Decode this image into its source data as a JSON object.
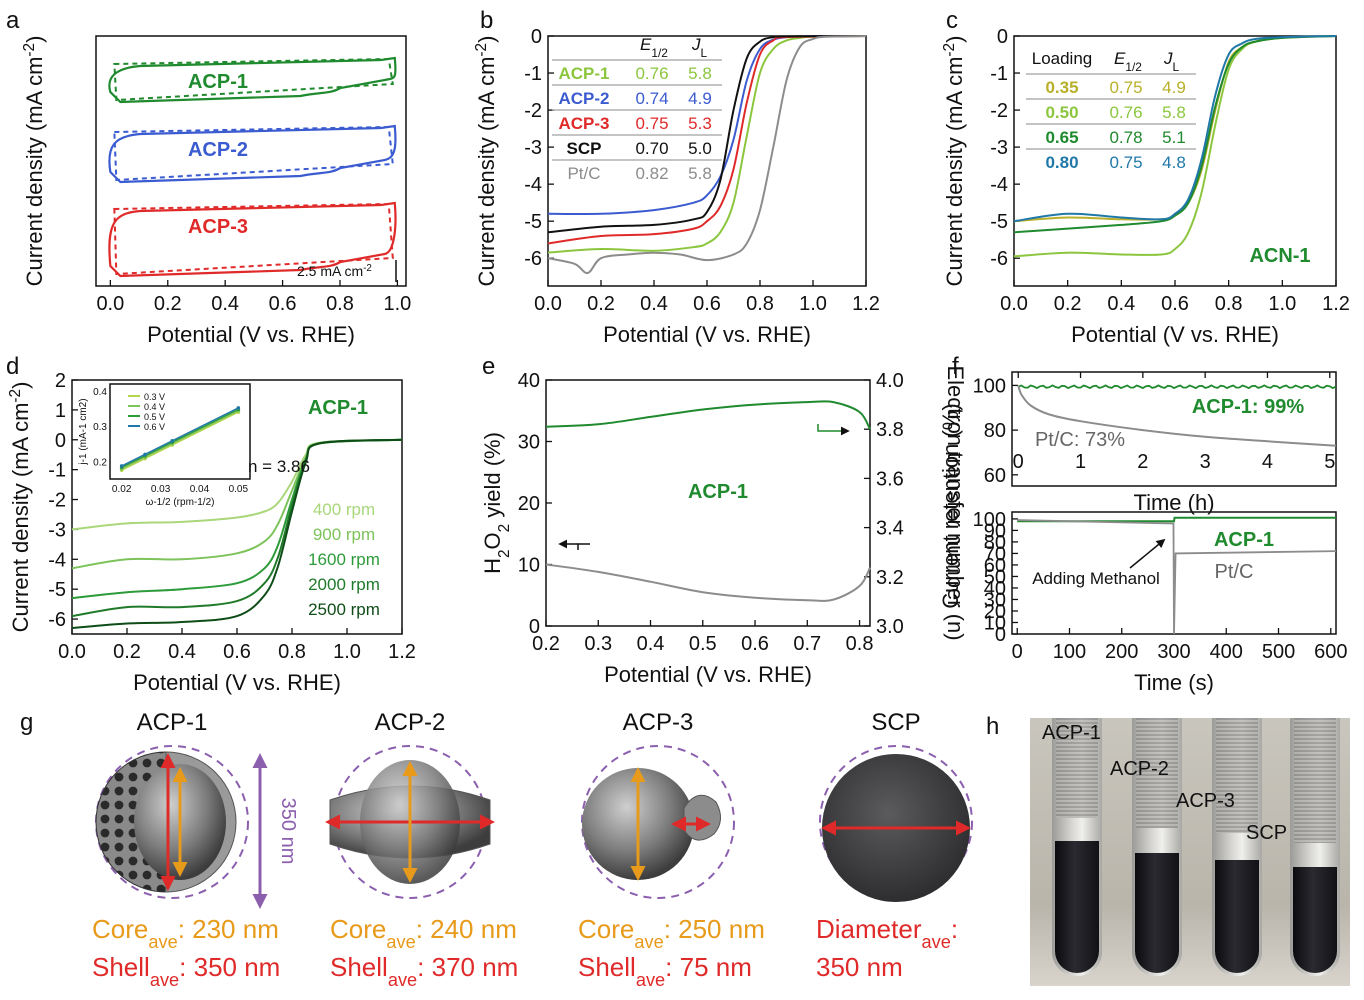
{
  "panel_letters": {
    "a": "a",
    "b": "b",
    "c": "c",
    "d": "d",
    "e": "e",
    "f": "f",
    "g": "g",
    "h": "h"
  },
  "colors": {
    "green": "#1f8a2e",
    "blue": "#3b5bd0",
    "red": "#e02a2a",
    "lightgreen": "#8cc63e",
    "gray": "#8c8c8c",
    "olive": "#b8b02a",
    "teal": "#1f78a8",
    "orange": "#e89a1a",
    "purple": "#8b5fae"
  },
  "axis": {
    "xlabel": "Potential (V vs. RHE)",
    "ylabel": "Current density (mA cm-2)"
  },
  "chart_data": [
    {
      "id": "a",
      "type": "line",
      "xlabel": "Potential (V vs. RHE)",
      "ylabel": "Current density (mA cm-2)",
      "xlim": [
        -0.05,
        1.03
      ],
      "xticks": [
        "0.0",
        "0.2",
        "0.4",
        "0.6",
        "0.8",
        "1.0"
      ],
      "series": [
        {
          "name": "ACP-1"
        },
        {
          "name": "ACP-2"
        },
        {
          "name": "ACP-3"
        }
      ],
      "scalebar": "2.5 mA cm-2"
    },
    {
      "id": "b",
      "type": "line",
      "xlim": [
        0,
        1.2
      ],
      "ylim": [
        -6.7,
        0
      ],
      "xticks": [
        "0.0",
        "0.2",
        "0.4",
        "0.6",
        "0.8",
        "1.0",
        "1.2"
      ],
      "yticks": [
        "0",
        "-1",
        "-2",
        "-3",
        "-4",
        "-5",
        "-6"
      ],
      "table": {
        "headers": [
          "",
          "E1/2",
          "JL"
        ],
        "rows": [
          [
            "ACP-1",
            "0.76",
            "5.8"
          ],
          [
            "ACP-2",
            "0.74",
            "4.9"
          ],
          [
            "ACP-3",
            "0.75",
            "5.3"
          ],
          [
            "SCP",
            "0.70",
            "5.0"
          ],
          [
            "Pt/C",
            "0.82",
            "5.8"
          ]
        ]
      },
      "series": [
        {
          "name": "ACP-1",
          "x": [
            0,
            0.2,
            0.4,
            0.55,
            0.6,
            0.65,
            0.7,
            0.75,
            0.8,
            0.85,
            0.9,
            0.95,
            1.0,
            1.2
          ],
          "y": [
            -5.85,
            -5.75,
            -5.8,
            -5.7,
            -5.6,
            -5.3,
            -4.5,
            -2.7,
            -1.0,
            -0.35,
            -0.12,
            -0.05,
            -0.02,
            0
          ]
        },
        {
          "name": "ACP-2",
          "x": [
            0,
            0.2,
            0.4,
            0.55,
            0.6,
            0.65,
            0.7,
            0.75,
            0.8,
            0.85,
            0.9,
            0.95,
            1.2
          ],
          "y": [
            -4.8,
            -4.8,
            -4.7,
            -4.5,
            -4.3,
            -3.8,
            -2.8,
            -1.2,
            -0.35,
            -0.1,
            -0.03,
            -0.01,
            0
          ]
        },
        {
          "name": "ACP-3",
          "x": [
            0,
            0.2,
            0.4,
            0.55,
            0.6,
            0.65,
            0.7,
            0.75,
            0.8,
            0.85,
            0.9,
            1.2
          ],
          "y": [
            -5.6,
            -5.4,
            -5.35,
            -5.2,
            -5.0,
            -4.6,
            -3.6,
            -1.8,
            -0.5,
            -0.12,
            -0.03,
            0
          ]
        },
        {
          "name": "SCP",
          "x": [
            0,
            0.2,
            0.4,
            0.55,
            0.6,
            0.65,
            0.7,
            0.75,
            0.8,
            0.85,
            0.9,
            1.2
          ],
          "y": [
            -5.3,
            -5.15,
            -5.1,
            -4.95,
            -4.75,
            -3.9,
            -2.0,
            -0.6,
            -0.15,
            -0.03,
            -0.01,
            0
          ]
        },
        {
          "name": "Pt/C",
          "x": [
            0,
            0.1,
            0.15,
            0.2,
            0.3,
            0.4,
            0.5,
            0.6,
            0.7,
            0.75,
            0.8,
            0.85,
            0.9,
            0.95,
            1.0,
            1.05,
            1.2
          ],
          "y": [
            -6.0,
            -6.15,
            -6.4,
            -6.0,
            -5.9,
            -5.85,
            -5.9,
            -6.05,
            -5.9,
            -5.6,
            -4.7,
            -3.0,
            -1.2,
            -0.3,
            -0.08,
            -0.02,
            0
          ]
        }
      ]
    },
    {
      "id": "c",
      "type": "line",
      "xlim": [
        0,
        1.2
      ],
      "ylim": [
        -6.7,
        0
      ],
      "label": "ACN-1",
      "xticks": [
        "0.0",
        "0.2",
        "0.4",
        "0.6",
        "0.8",
        "1.0",
        "1.2"
      ],
      "yticks": [
        "0",
        "-1",
        "-2",
        "-3",
        "-4",
        "-5",
        "-6"
      ],
      "table": {
        "headers": [
          "Loading",
          "E1/2",
          "JL"
        ],
        "rows": [
          [
            "0.35",
            "0.75",
            "4.9"
          ],
          [
            "0.50",
            "0.76",
            "5.8"
          ],
          [
            "0.65",
            "0.78",
            "5.1"
          ],
          [
            "0.80",
            "0.75",
            "4.8"
          ]
        ]
      },
      "series": [
        {
          "name": "0.35",
          "x": [
            0,
            0.2,
            0.4,
            0.55,
            0.6,
            0.65,
            0.7,
            0.75,
            0.8,
            0.85,
            0.9,
            1.0,
            1.2
          ],
          "y": [
            -5.0,
            -4.9,
            -4.95,
            -4.95,
            -4.85,
            -4.5,
            -3.6,
            -2.0,
            -0.7,
            -0.3,
            -0.15,
            -0.05,
            0
          ]
        },
        {
          "name": "0.50",
          "x": [
            0,
            0.2,
            0.4,
            0.55,
            0.6,
            0.65,
            0.7,
            0.75,
            0.8,
            0.85,
            0.9,
            1.0,
            1.2
          ],
          "y": [
            -5.95,
            -5.85,
            -5.9,
            -5.9,
            -5.75,
            -5.3,
            -4.2,
            -2.4,
            -0.9,
            -0.35,
            -0.15,
            -0.05,
            0
          ]
        },
        {
          "name": "0.65",
          "x": [
            0,
            0.2,
            0.4,
            0.55,
            0.6,
            0.65,
            0.7,
            0.75,
            0.8,
            0.85,
            0.9,
            1.0,
            1.2
          ],
          "y": [
            -5.3,
            -5.2,
            -5.1,
            -5.0,
            -4.85,
            -4.5,
            -3.5,
            -1.9,
            -0.75,
            -0.3,
            -0.15,
            -0.05,
            0
          ]
        },
        {
          "name": "0.80",
          "x": [
            0,
            0.2,
            0.4,
            0.55,
            0.6,
            0.65,
            0.7,
            0.75,
            0.8,
            0.85,
            0.9,
            1.0,
            1.2
          ],
          "y": [
            -5.0,
            -4.8,
            -4.9,
            -4.95,
            -4.8,
            -4.4,
            -3.3,
            -1.6,
            -0.5,
            -0.2,
            -0.08,
            -0.03,
            0
          ]
        }
      ]
    },
    {
      "id": "d",
      "type": "line",
      "xlim": [
        0,
        1.2
      ],
      "ylim": [
        -6.5,
        2
      ],
      "label": "ACP-1",
      "xticks": [
        "0.0",
        "0.2",
        "0.4",
        "0.6",
        "0.8",
        "1.0",
        "1.2"
      ],
      "yticks": [
        "2",
        "1",
        "0",
        "-1",
        "-2",
        "-3",
        "-4",
        "-5",
        "-6"
      ],
      "series": [
        {
          "name": "400 rpm",
          "x": [
            0,
            0.2,
            0.4,
            0.6,
            0.7,
            0.75,
            0.8,
            0.85,
            0.9,
            1.2
          ],
          "y": [
            -3.0,
            -2.8,
            -2.75,
            -2.6,
            -2.4,
            -2.1,
            -1.4,
            -0.5,
            -0.1,
            0
          ]
        },
        {
          "name": "900 rpm",
          "x": [
            0,
            0.2,
            0.4,
            0.6,
            0.7,
            0.75,
            0.8,
            0.85,
            0.9,
            1.2
          ],
          "y": [
            -4.3,
            -4.0,
            -4.0,
            -3.8,
            -3.4,
            -2.8,
            -1.7,
            -0.6,
            -0.1,
            0
          ]
        },
        {
          "name": "1600 rpm",
          "x": [
            0,
            0.2,
            0.4,
            0.6,
            0.7,
            0.75,
            0.8,
            0.85,
            0.9,
            1.2
          ],
          "y": [
            -5.3,
            -5.1,
            -5.0,
            -4.8,
            -4.3,
            -3.5,
            -2.0,
            -0.65,
            -0.12,
            0
          ]
        },
        {
          "name": "2000 rpm",
          "x": [
            0,
            0.2,
            0.4,
            0.6,
            0.7,
            0.75,
            0.8,
            0.85,
            0.9,
            1.2
          ],
          "y": [
            -5.9,
            -5.6,
            -5.6,
            -5.4,
            -4.8,
            -3.9,
            -2.2,
            -0.7,
            -0.12,
            0
          ]
        },
        {
          "name": "2500 rpm",
          "x": [
            0,
            0.2,
            0.4,
            0.6,
            0.7,
            0.75,
            0.8,
            0.85,
            0.9,
            1.2
          ],
          "y": [
            -6.3,
            -6.15,
            -6.1,
            -5.9,
            -5.2,
            -4.2,
            -2.4,
            -0.75,
            -0.12,
            0
          ]
        }
      ],
      "inset": {
        "xlabel": "ω-1/2 (rpm-1/2)",
        "ylabel": "j-1 (mA-1 cm2)",
        "xticks": [
          "0.02",
          "0.03",
          "0.04",
          "0.05"
        ],
        "yticks": [
          "0.4",
          "0.3",
          "0.2"
        ],
        "legend": [
          "0.3 V",
          "0.4 V",
          "0.5 V",
          "0.6 V"
        ],
        "annotation": "n = 3.86"
      }
    },
    {
      "id": "e",
      "type": "line",
      "xlim": [
        0.2,
        0.82
      ],
      "label": "ACP-1",
      "xticks": [
        "0.2",
        "0.3",
        "0.4",
        "0.5",
        "0.6",
        "0.7",
        "0.8"
      ],
      "y1ticks": [
        "40",
        "30",
        "20",
        "10",
        "0"
      ],
      "y2ticks": [
        "4.0",
        "3.8",
        "3.6",
        "3.4",
        "3.2",
        "3.0"
      ],
      "y1label": "H2O2 yield (%)",
      "y2label": "Electron transfer number (n)",
      "series": [
        {
          "name": "H2O2 yield",
          "axis": "left",
          "x": [
            0.2,
            0.3,
            0.4,
            0.5,
            0.6,
            0.7,
            0.75,
            0.8,
            0.82
          ],
          "y": [
            10,
            8.8,
            7.2,
            5.5,
            4.6,
            4.2,
            4.3,
            6.5,
            9.5
          ]
        },
        {
          "name": "Electron transfer number",
          "axis": "right",
          "x": [
            0.2,
            0.3,
            0.4,
            0.5,
            0.6,
            0.7,
            0.75,
            0.8,
            0.82
          ],
          "y": [
            3.81,
            3.82,
            3.85,
            3.88,
            3.9,
            3.91,
            3.91,
            3.87,
            3.8
          ]
        }
      ]
    },
    {
      "id": "f_top",
      "type": "line",
      "xlabel": "Time (h)",
      "ylabel": "Current retention (%)",
      "xlim": [
        0,
        5.1
      ],
      "ylim": [
        55,
        105
      ],
      "xticks": [
        "0",
        "1",
        "2",
        "3",
        "4",
        "5"
      ],
      "yticks": [
        "100",
        "80",
        "60"
      ],
      "annotations": [
        "ACP-1: 99%",
        "Pt/C: 73%"
      ],
      "series": [
        {
          "name": "ACP-1",
          "x": [
            0,
            1,
            2,
            3,
            4,
            5.1
          ],
          "y": [
            99.5,
            99.5,
            99.5,
            99.6,
            99.5,
            99.0
          ]
        },
        {
          "name": "Pt/C",
          "x": [
            0,
            0.05,
            0.2,
            0.5,
            1,
            2,
            3,
            4,
            5.1
          ],
          "y": [
            100,
            96,
            91,
            87,
            84,
            80,
            77,
            75,
            73
          ]
        }
      ]
    },
    {
      "id": "f_bottom",
      "type": "line",
      "xlabel": "Time (s)",
      "ylim": [
        0,
        105
      ],
      "xlim": [
        0,
        610
      ],
      "xticks": [
        "0",
        "100",
        "200",
        "300",
        "400",
        "500",
        "600"
      ],
      "yticks": [
        "100",
        "90",
        "80",
        "70",
        "60",
        "50",
        "40",
        "30",
        "20",
        "10",
        "0"
      ],
      "annotations": [
        "Adding Methanol",
        "ACP-1",
        "Pt/C"
      ],
      "series": [
        {
          "name": "ACP-1",
          "x": [
            0,
            300,
            301,
            610
          ],
          "y": [
            98,
            98,
            101,
            101
          ]
        },
        {
          "name": "Pt/C",
          "x": [
            0,
            299,
            300,
            302,
            310,
            610
          ],
          "y": [
            99,
            96,
            0,
            70,
            72,
            72
          ]
        }
      ]
    }
  ],
  "g": {
    "particles": [
      {
        "name": "ACP-1",
        "line1_label": "Core",
        "line1_value": ": 230 nm",
        "line2_label": "Shell",
        "line2_value": ": 350 nm"
      },
      {
        "name": "ACP-2",
        "line1_label": "Core",
        "line1_value": ": 240 nm",
        "line2_label": "Shell",
        "line2_value": ": 370 nm"
      },
      {
        "name": "ACP-3",
        "line1_label": "Core",
        "line1_value": ": 250 nm",
        "line2_label": "Shell",
        "line2_value": ": 75 nm"
      },
      {
        "name": "SCP",
        "line1_label": "Diameter",
        "line1_value": ":",
        "line2_label": "",
        "line2_value": "350 nm"
      }
    ],
    "sub": "ave",
    "scale": "350 nm"
  },
  "h": {
    "tubes": [
      "ACP-1",
      "ACP-2",
      "ACP-3",
      "SCP"
    ],
    "fill_levels": [
      0.55,
      0.5,
      0.47,
      0.44
    ]
  }
}
